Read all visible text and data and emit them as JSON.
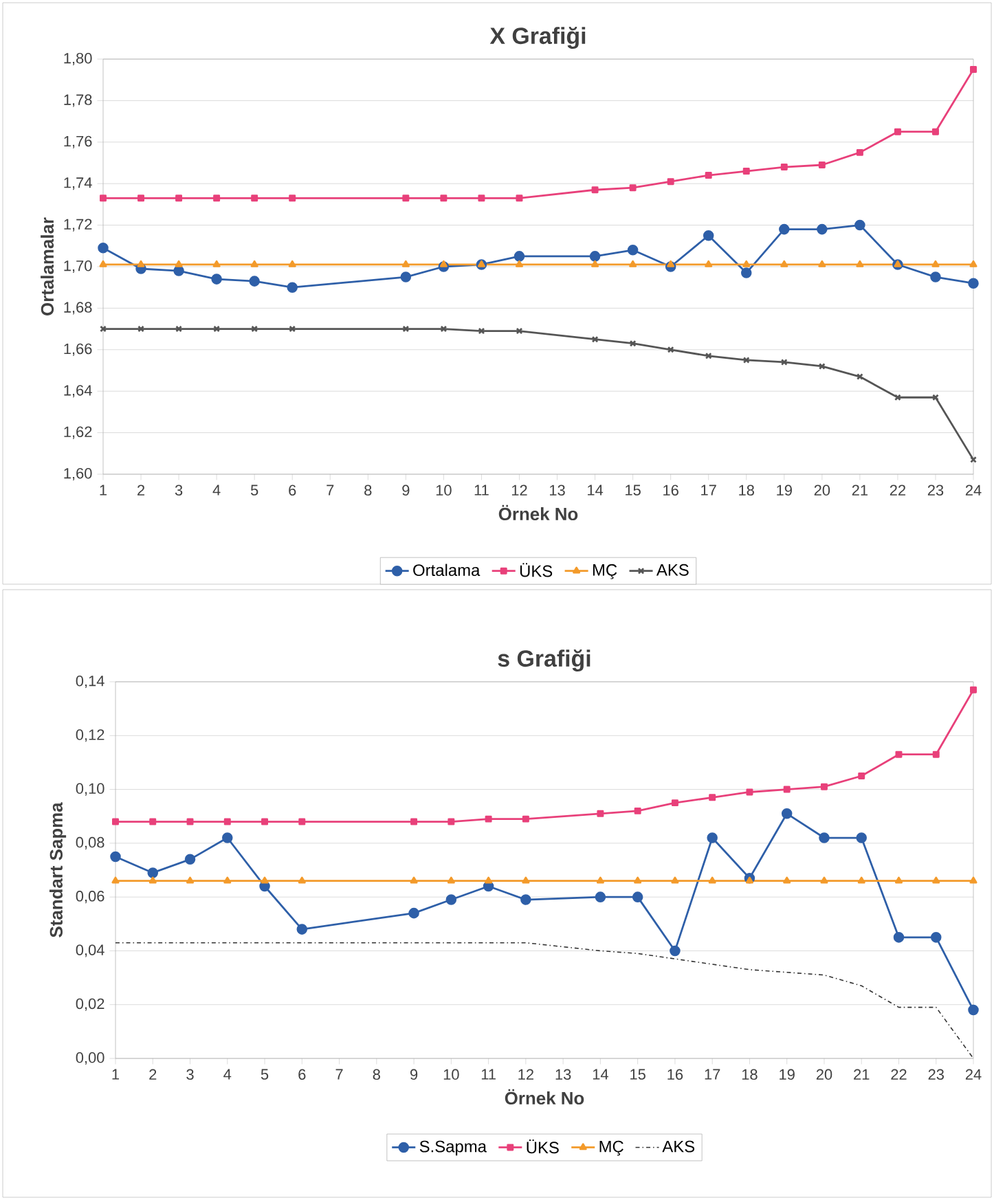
{
  "chart_data": [
    {
      "type": "line",
      "title": "X Grafiği",
      "xlabel": "Örnek No",
      "ylabel": "Ortalamalar",
      "x": [
        1,
        2,
        3,
        4,
        5,
        6,
        9,
        10,
        11,
        12,
        14,
        15,
        16,
        17,
        18,
        19,
        20,
        21,
        22,
        23,
        24
      ],
      "xlim": [
        1,
        24
      ],
      "xticks": [
        1,
        2,
        3,
        4,
        5,
        6,
        7,
        8,
        9,
        10,
        11,
        12,
        13,
        14,
        15,
        16,
        17,
        18,
        19,
        20,
        21,
        22,
        23,
        24
      ],
      "ylim": [
        1.6,
        1.8
      ],
      "yticks": [
        {
          "value": 1.6,
          "label": "1,60"
        },
        {
          "value": 1.62,
          "label": "1,62"
        },
        {
          "value": 1.64,
          "label": "1,64"
        },
        {
          "value": 1.66,
          "label": "1,66"
        },
        {
          "value": 1.68,
          "label": "1,68"
        },
        {
          "value": 1.7,
          "label": "1,70"
        },
        {
          "value": 1.72,
          "label": "1,72"
        },
        {
          "value": 1.74,
          "label": "1,74"
        },
        {
          "value": 1.76,
          "label": "1,76"
        },
        {
          "value": 1.78,
          "label": "1,78"
        },
        {
          "value": 1.8,
          "label": "1,80"
        }
      ],
      "grid": "y",
      "legend": "bottom",
      "series": [
        {
          "name": "Ortalama",
          "color": "#2e5fa8",
          "marker": "circle",
          "line_style": "solid",
          "values": [
            1.709,
            1.699,
            1.698,
            1.694,
            1.693,
            1.69,
            1.695,
            1.7,
            1.701,
            1.705,
            1.705,
            1.708,
            1.7,
            1.715,
            1.697,
            1.718,
            1.718,
            1.72,
            1.701,
            1.695,
            1.692
          ]
        },
        {
          "name": "ÜKS",
          "color": "#e8407a",
          "marker": "square",
          "line_style": "solid",
          "values": [
            1.733,
            1.733,
            1.733,
            1.733,
            1.733,
            1.733,
            1.733,
            1.733,
            1.733,
            1.733,
            1.737,
            1.738,
            1.741,
            1.744,
            1.746,
            1.748,
            1.749,
            1.755,
            1.765,
            1.765,
            1.795
          ]
        },
        {
          "name": "MÇ",
          "color": "#f39a2a",
          "marker": "triangle",
          "line_style": "solid",
          "values": [
            1.701,
            1.701,
            1.701,
            1.701,
            1.701,
            1.701,
            1.701,
            1.701,
            1.701,
            1.701,
            1.701,
            1.701,
            1.701,
            1.701,
            1.701,
            1.701,
            1.701,
            1.701,
            1.701,
            1.701,
            1.701
          ]
        },
        {
          "name": "AKS",
          "color": "#555555",
          "marker": "cross",
          "line_style": "solid",
          "values": [
            1.67,
            1.67,
            1.67,
            1.67,
            1.67,
            1.67,
            1.67,
            1.67,
            1.669,
            1.669,
            1.665,
            1.663,
            1.66,
            1.657,
            1.655,
            1.654,
            1.652,
            1.647,
            1.637,
            1.637,
            1.607
          ]
        }
      ]
    },
    {
      "type": "line",
      "title": "s Grafiği",
      "xlabel": "Örnek No",
      "ylabel": "Standart Sapma",
      "x": [
        1,
        2,
        3,
        4,
        5,
        6,
        9,
        10,
        11,
        12,
        14,
        15,
        16,
        17,
        18,
        19,
        20,
        21,
        22,
        23,
        24
      ],
      "xlim": [
        1,
        24
      ],
      "xticks": [
        1,
        2,
        3,
        4,
        5,
        6,
        7,
        8,
        9,
        10,
        11,
        12,
        13,
        14,
        15,
        16,
        17,
        18,
        19,
        20,
        21,
        22,
        23,
        24
      ],
      "ylim": [
        0,
        0.14
      ],
      "yticks": [
        {
          "value": 0,
          "label": "0,00"
        },
        {
          "value": 0.02,
          "label": "0,02"
        },
        {
          "value": 0.04,
          "label": "0,04"
        },
        {
          "value": 0.06,
          "label": "0,06"
        },
        {
          "value": 0.08,
          "label": "0,08"
        },
        {
          "value": 0.1,
          "label": "0,10"
        },
        {
          "value": 0.12,
          "label": "0,12"
        },
        {
          "value": 0.14,
          "label": "0,14"
        }
      ],
      "grid": "y",
      "legend": "bottom",
      "series": [
        {
          "name": "S.Sapma",
          "color": "#2e5fa8",
          "marker": "circle",
          "line_style": "solid",
          "values": [
            0.075,
            0.069,
            0.074,
            0.082,
            0.064,
            0.048,
            0.054,
            0.059,
            0.064,
            0.059,
            0.06,
            0.06,
            0.04,
            0.082,
            0.067,
            0.091,
            0.082,
            0.082,
            0.045,
            0.045,
            0.018
          ]
        },
        {
          "name": "ÜKS",
          "color": "#e8407a",
          "marker": "square",
          "line_style": "solid",
          "values": [
            0.088,
            0.088,
            0.088,
            0.088,
            0.088,
            0.088,
            0.088,
            0.088,
            0.089,
            0.089,
            0.091,
            0.092,
            0.095,
            0.097,
            0.099,
            0.1,
            0.101,
            0.105,
            0.113,
            0.113,
            0.137
          ]
        },
        {
          "name": "MÇ",
          "color": "#f39a2a",
          "marker": "triangle",
          "line_style": "solid",
          "values": [
            0.066,
            0.066,
            0.066,
            0.066,
            0.066,
            0.066,
            0.066,
            0.066,
            0.066,
            0.066,
            0.066,
            0.066,
            0.066,
            0.066,
            0.066,
            0.066,
            0.066,
            0.066,
            0.066,
            0.066,
            0.066
          ]
        },
        {
          "name": "AKS",
          "color": "#333333",
          "marker": "none",
          "line_style": "dashed",
          "values": [
            0.043,
            0.043,
            0.043,
            0.043,
            0.043,
            0.043,
            0.043,
            0.043,
            0.043,
            0.043,
            0.04,
            0.039,
            0.037,
            0.035,
            0.033,
            0.032,
            0.031,
            0.027,
            0.019,
            0.019,
            0.0
          ]
        }
      ]
    }
  ]
}
